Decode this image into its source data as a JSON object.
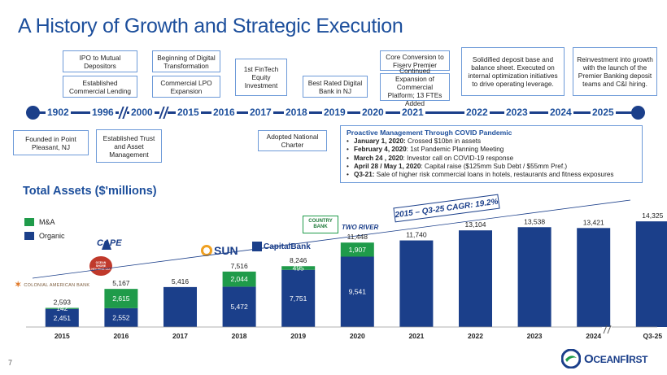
{
  "slide": {
    "title": "A History of Growth and Strategic Execution",
    "page_number": "7"
  },
  "timeline": {
    "years": [
      "1902",
      "1996",
      "2000",
      "2015",
      "2016",
      "2017",
      "2018",
      "2019",
      "2020",
      "2021",
      "2022",
      "2023",
      "2024",
      "2025"
    ],
    "above": {
      "ipo": "IPO to Mutual Depositors",
      "commercial_lending": "Established Commercial Lending",
      "digital": "Beginning of Digital Transformation",
      "lpo": "Commercial LPO Expansion",
      "fintech": "1st FinTech Equity Investment",
      "rated_digital": "Best Rated Digital Bank in NJ",
      "core_conversion": "Core Conversion to Fiserv Premier",
      "commercial_platform": "Continued Expansion of Commercial Platform; 13 FTEs Added",
      "deposit_base": "Solidified deposit base and balance sheet. Executed on internal optimization initiatives to drive operating leverage.",
      "reinvestment": "Reinvestment into growth with the launch of the Premier Banking deposit teams and C&I hiring."
    },
    "below": {
      "founded": "Founded in Point Pleasant, NJ",
      "trust": "Established Trust and Asset Management",
      "charter": "Adopted National Charter"
    }
  },
  "covid": {
    "heading": "Proactive Management Through COVID Pandemic",
    "items": [
      {
        "bold": "January 1, 2020:",
        "text": " Crossed $10bn in assets"
      },
      {
        "bold": "February 4, 2020",
        "text": ": 1st Pandemic Planning Meeting"
      },
      {
        "bold": "March 24 , 2020",
        "text": ": Investor call on COVID-19 response"
      },
      {
        "bold": "April 28 / May 1, 2020",
        "text": ": Capital raise ($125mm Sub Debt / $55mm Pref.)"
      },
      {
        "bold": "Q3-21:",
        "text": " Sale of higher risk commercial loans in hotels, restaurants and fitness exposures"
      }
    ]
  },
  "chart_section": {
    "subtitle": "Total Assets ($'millions)",
    "cagr_label": "2015 – Q3-25 CAGR: 19.2%"
  },
  "acquisition_logos": {
    "colonial": "COLONIAL AMERICAN BANK",
    "cape": "CAPE",
    "ocean_shore": "OCEAN SHORE HOLDING CO.",
    "sun": "SUN",
    "capital": "CapitalBank",
    "country": "COUNTRY BANK",
    "two_river": "TWO RIVER"
  },
  "chart_data": {
    "type": "bar",
    "stacked": true,
    "title": "Total Assets ($'millions)",
    "categories": [
      "2015",
      "2016",
      "2017",
      "2018",
      "2019",
      "2020",
      "2021",
      "2022",
      "2023",
      "2024",
      "Q3-25"
    ],
    "series": [
      {
        "name": "Organic",
        "color": "#1b3f8a",
        "values": [
          2451,
          2552,
          5416,
          5472,
          7751,
          9541,
          11740,
          13104,
          13538,
          13421,
          14325
        ]
      },
      {
        "name": "M&A",
        "color": "#1f9b4a",
        "values": [
          142,
          2615,
          0,
          2044,
          495,
          1907,
          0,
          0,
          0,
          0,
          0
        ]
      }
    ],
    "totals": [
      2593,
      5167,
      5416,
      7516,
      8246,
      11448,
      11740,
      13104,
      13538,
      13421,
      14325
    ],
    "segment_labels": {
      "organic": [
        "2,451",
        "2,552",
        "",
        "5,472",
        "7,751",
        "9,541",
        "",
        "",
        "",
        "",
        ""
      ],
      "ma": [
        "142",
        "2,615",
        "",
        "2,044",
        "495",
        "1,907",
        "",
        "",
        "",
        "",
        ""
      ]
    },
    "total_labels": [
      "2,593",
      "5,167",
      "5,416",
      "7,516",
      "8,246",
      "11,448",
      "11,740",
      "13,104",
      "13,538",
      "13,421",
      "14,325"
    ],
    "legend": [
      "M&A",
      "Organic"
    ],
    "legend_position": "top-left",
    "ylim": [
      0,
      15000
    ],
    "grid": false
  },
  "brand": {
    "name_big": "O",
    "name_rest": "CEANF",
    "name_big2": "I",
    "name_end": "RST",
    "primary": "#1b3f8a",
    "accent": "#1f9b4a",
    "title_color": "#1d4f9c"
  }
}
